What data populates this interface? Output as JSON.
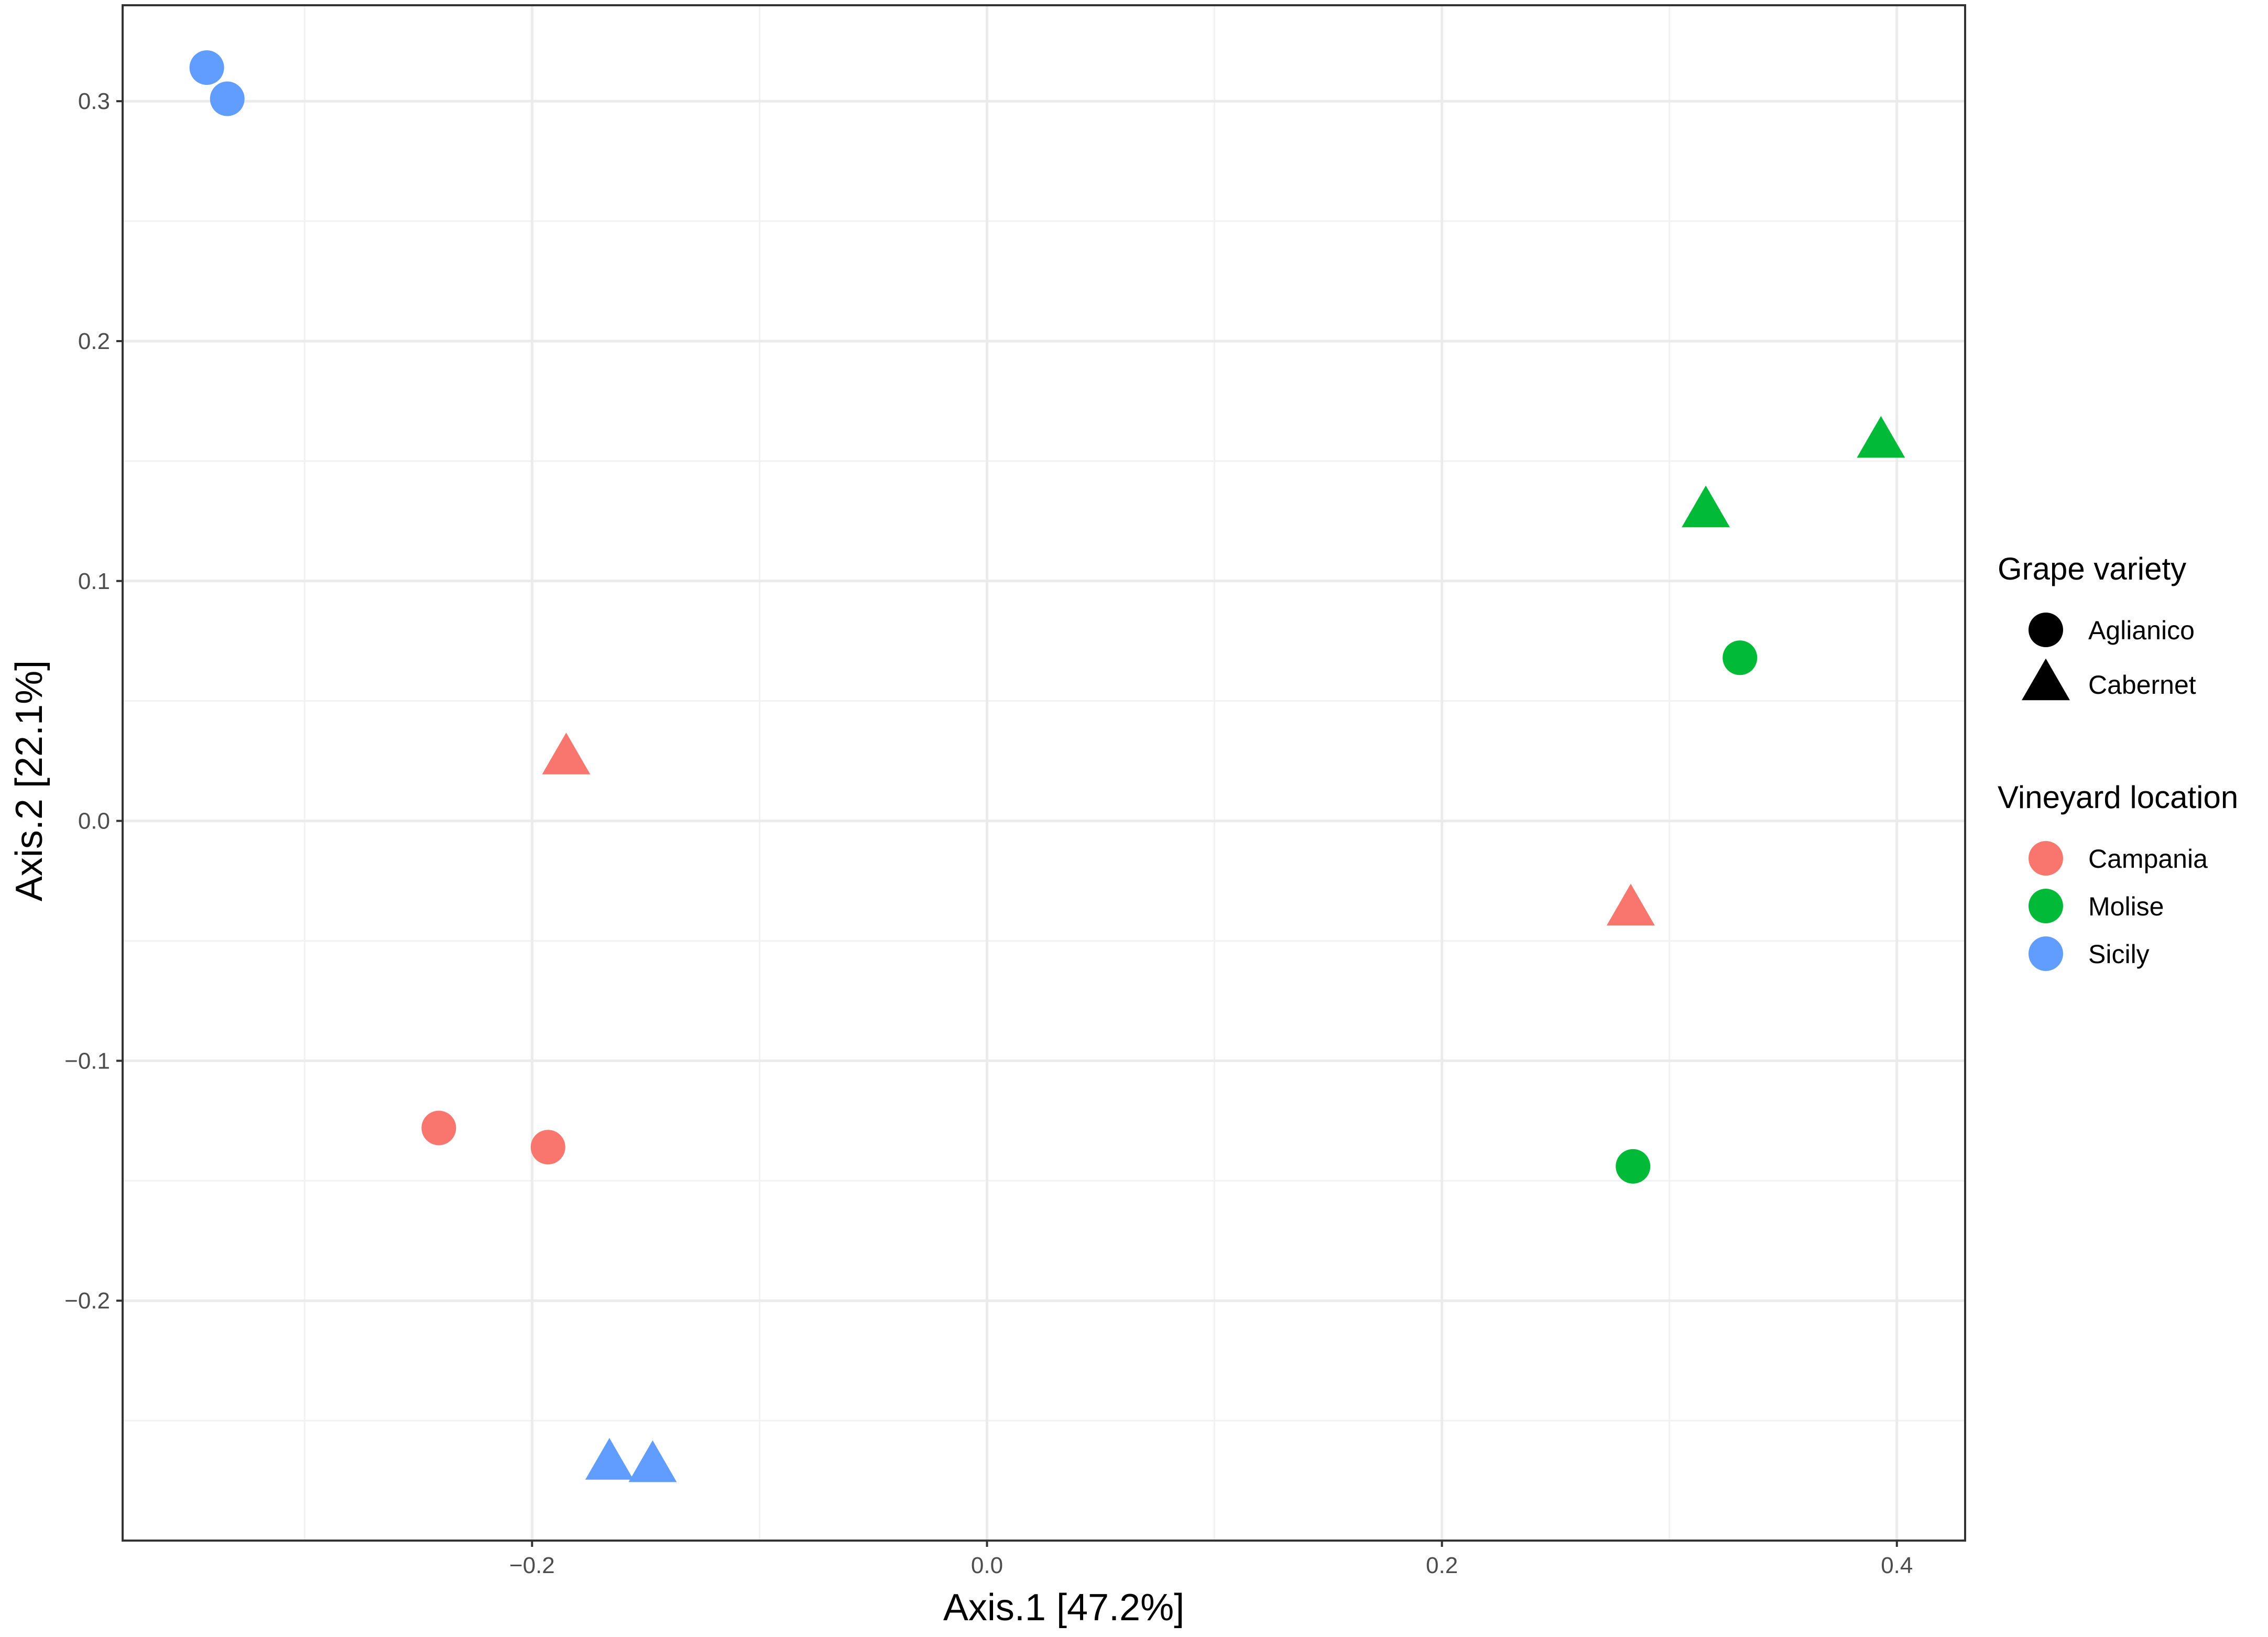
{
  "chart_data": {
    "type": "scatter",
    "xlabel": "Axis.1   [47.2%]",
    "ylabel": "Axis.2   [22.1%]",
    "xlim": [
      -0.38,
      0.43
    ],
    "ylim": [
      -0.3,
      0.34
    ],
    "x_ticks": [
      -0.2,
      0.0,
      0.2,
      0.4
    ],
    "x_tick_labels": [
      "−0.2",
      "0.0",
      "0.2",
      "0.4"
    ],
    "y_ticks": [
      -0.2,
      -0.1,
      0.0,
      0.1,
      0.2,
      0.3
    ],
    "y_tick_labels": [
      "−0.2",
      "−0.1",
      "0.0",
      "0.1",
      "0.2",
      "0.3"
    ],
    "grid": true,
    "legend_placement": "right",
    "legends": [
      {
        "title": "Grape variety",
        "kind": "shape",
        "entries": [
          {
            "label": "Aglianico",
            "shape": "circle",
            "color": "#000000"
          },
          {
            "label": "Cabernet",
            "shape": "triangle",
            "color": "#000000"
          }
        ]
      },
      {
        "title": "Vineyard location",
        "kind": "color",
        "entries": [
          {
            "label": "Campania",
            "shape": "circle",
            "color": "#F8766D"
          },
          {
            "label": "Molise",
            "shape": "circle",
            "color": "#00BA38"
          },
          {
            "label": "Sicily",
            "shape": "circle",
            "color": "#619CFF"
          }
        ]
      }
    ],
    "series": [
      {
        "variety": "Aglianico",
        "location": "Sicily",
        "shape": "circle",
        "color": "#619CFF",
        "points": [
          [
            -0.343,
            0.314
          ],
          [
            -0.334,
            0.301
          ]
        ]
      },
      {
        "variety": "Cabernet",
        "location": "Sicily",
        "shape": "triangle",
        "color": "#619CFF",
        "points": [
          [
            -0.166,
            -0.268
          ],
          [
            -0.147,
            -0.269
          ]
        ]
      },
      {
        "variety": "Aglianico",
        "location": "Campania",
        "shape": "circle",
        "color": "#F8766D",
        "points": [
          [
            -0.241,
            -0.128
          ],
          [
            -0.193,
            -0.136
          ]
        ]
      },
      {
        "variety": "Cabernet",
        "location": "Campania",
        "shape": "triangle",
        "color": "#F8766D",
        "points": [
          [
            -0.185,
            0.026
          ],
          [
            0.283,
            -0.037
          ]
        ]
      },
      {
        "variety": "Aglianico",
        "location": "Molise",
        "shape": "circle",
        "color": "#00BA38",
        "points": [
          [
            0.331,
            0.068
          ],
          [
            0.284,
            -0.144
          ]
        ]
      },
      {
        "variety": "Cabernet",
        "location": "Molise",
        "shape": "triangle",
        "color": "#00BA38",
        "points": [
          [
            0.316,
            0.129
          ],
          [
            0.393,
            0.158
          ]
        ]
      }
    ]
  }
}
